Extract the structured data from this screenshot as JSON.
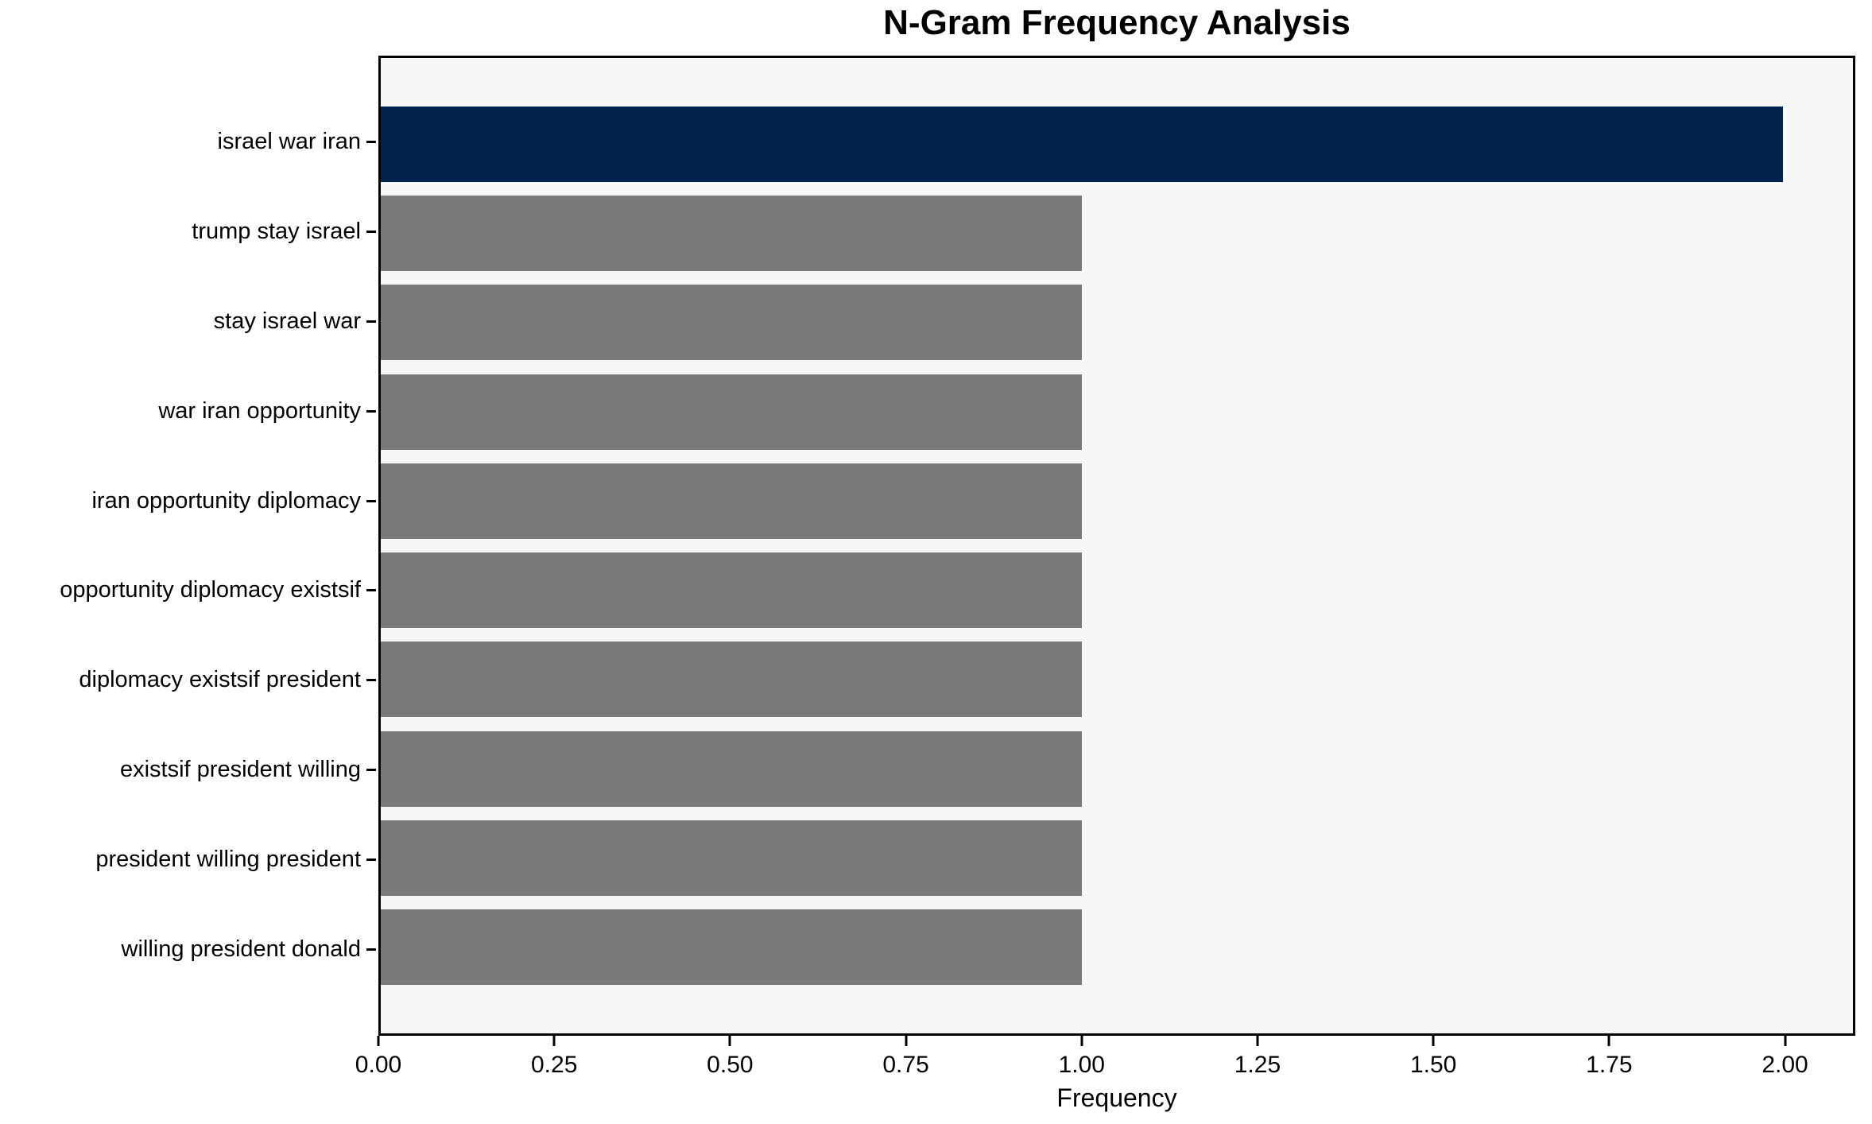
{
  "chart_data": {
    "type": "bar",
    "orientation": "horizontal",
    "title": "N-Gram Frequency Analysis",
    "xlabel": "Frequency",
    "ylabel": "",
    "categories": [
      "israel war iran",
      "trump stay israel",
      "stay israel war",
      "war iran opportunity",
      "iran opportunity diplomacy",
      "opportunity diplomacy existsif",
      "diplomacy existsif president",
      "existsif president willing",
      "president willing president",
      "willing president donald"
    ],
    "values": [
      2,
      1,
      1,
      1,
      1,
      1,
      1,
      1,
      1,
      1
    ],
    "xlim": [
      0,
      2.1
    ],
    "xticks": [
      0.0,
      0.25,
      0.5,
      0.75,
      1.0,
      1.25,
      1.5,
      1.75,
      2.0
    ],
    "xtick_labels": [
      "0.00",
      "0.25",
      "0.50",
      "0.75",
      "1.00",
      "1.25",
      "1.50",
      "1.75",
      "2.00"
    ],
    "grid": false,
    "legend": null,
    "bar_colors": [
      "#01234d",
      "#7a7a78",
      "#7a7a78",
      "#7a7a78",
      "#7a7a78",
      "#7a7a78",
      "#7a7a78",
      "#7a7a78",
      "#7a7a78",
      "#7a7a78"
    ],
    "colors": {
      "highlight": "#01234d",
      "default": "#7a7a78",
      "plot_background": "#f7f7f7",
      "figure_background": "#ffffff",
      "spine": "#000000",
      "text": "#000000"
    }
  }
}
